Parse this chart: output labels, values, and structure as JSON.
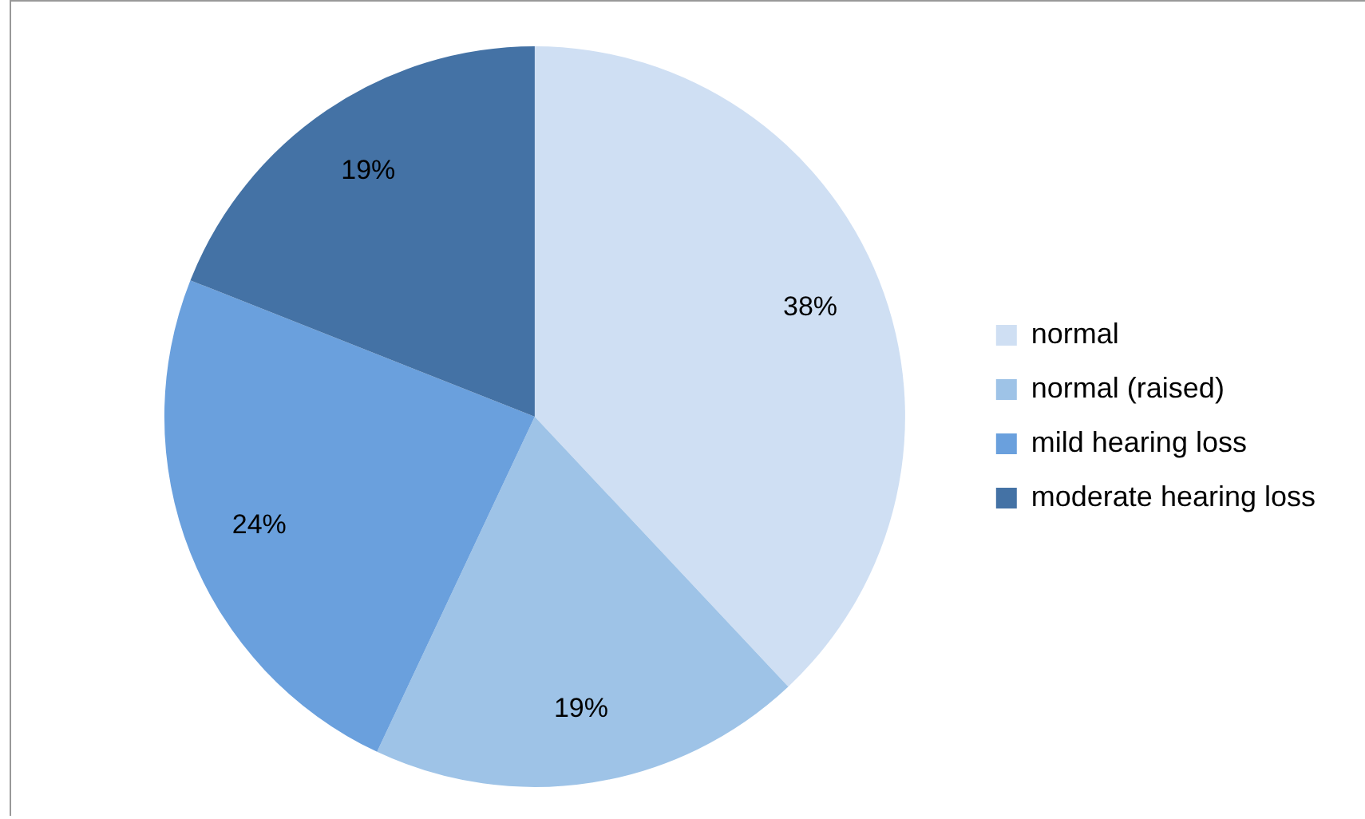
{
  "chart_data": {
    "type": "pie",
    "categories": [
      "normal",
      "normal (raised)",
      "mild hearing loss",
      "moderate hearing loss"
    ],
    "values": [
      38,
      19,
      24,
      19
    ],
    "colors": [
      "#cfdff3",
      "#9ec3e7",
      "#6aa0dd",
      "#4472a5"
    ],
    "value_labels": [
      "38%",
      "19%",
      "24%",
      "19%"
    ],
    "legend": "right"
  }
}
